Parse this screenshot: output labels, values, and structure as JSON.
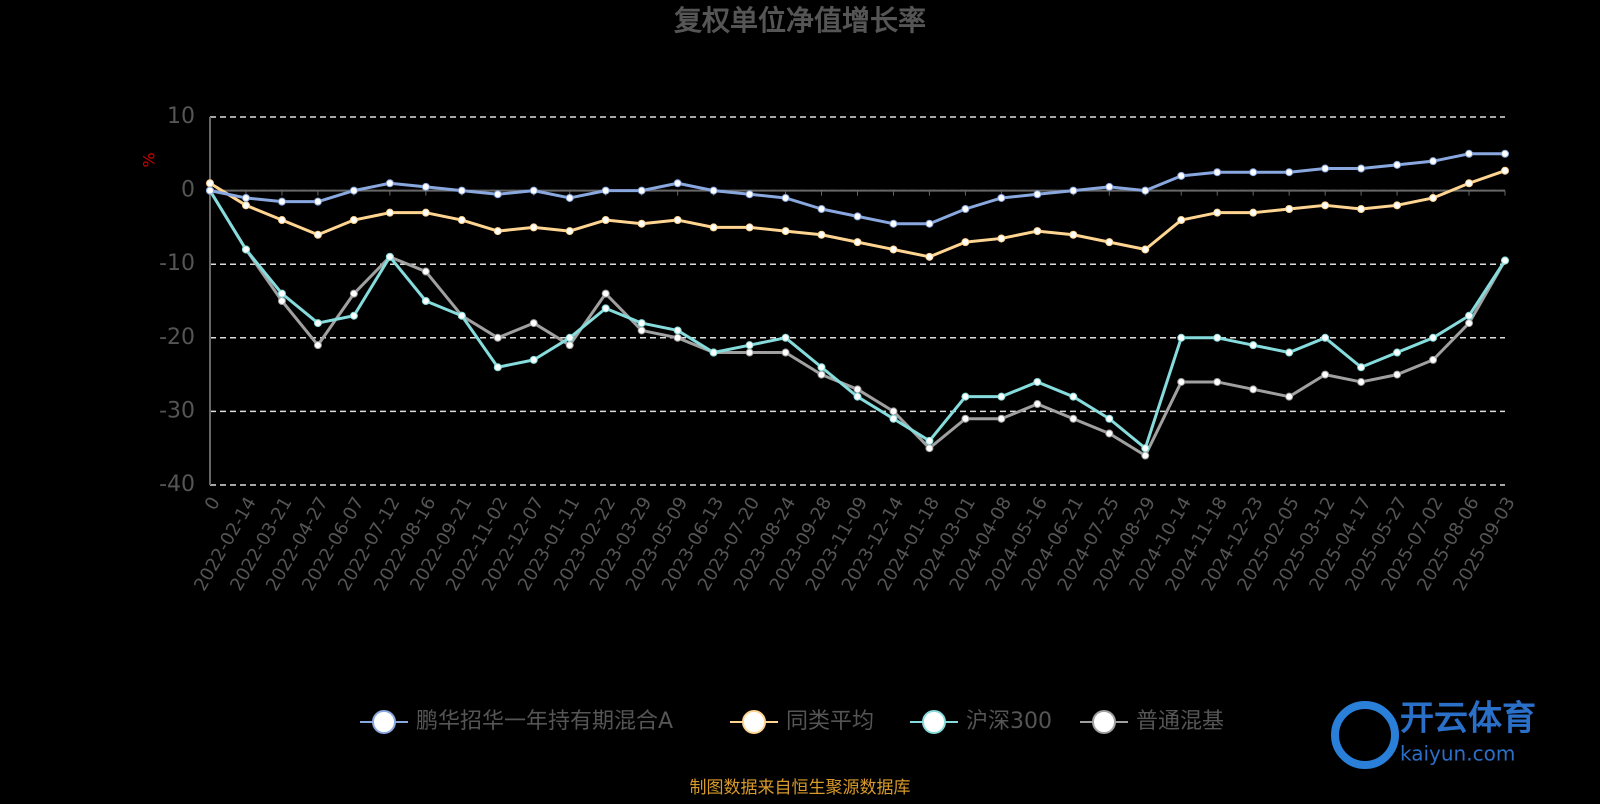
{
  "chart_data": {
    "type": "line",
    "title": "复权单位净值增长率",
    "y_label": "%",
    "categories": [
      "0",
      "2022-02-14",
      "2022-03-21",
      "2022-04-27",
      "2022-06-07",
      "2022-07-12",
      "2022-08-16",
      "2022-09-21",
      "2022-11-02",
      "2022-12-07",
      "2023-01-11",
      "2023-02-22",
      "2023-03-29",
      "2023-05-09",
      "2023-06-13",
      "2023-07-20",
      "2023-08-24",
      "2023-09-28",
      "2023-11-09",
      "2023-12-14",
      "2024-01-18",
      "2024-03-01",
      "2024-04-08",
      "2024-05-16",
      "2024-06-21",
      "2024-07-25",
      "2024-08-29",
      "2024-10-14",
      "2024-11-18",
      "2024-12-23",
      "2025-02-05",
      "2025-03-12",
      "2025-04-17",
      "2025-05-27",
      "2025-07-02",
      "2025-08-06",
      "2025-09-03"
    ],
    "series": [
      {
        "name": "鹏华招华一年持有期混合A",
        "color": "#8aa8e0",
        "values": [
          0,
          -1,
          -1.5,
          -1.5,
          0,
          1,
          0.5,
          0,
          -0.5,
          0,
          -1,
          0,
          0,
          1,
          0,
          -0.5,
          -1,
          -2.5,
          -3.5,
          -4.5,
          -4.5,
          -2.5,
          -1,
          -0.5,
          0,
          0.5,
          0,
          2,
          2.5,
          2.5,
          2.5,
          3,
          3,
          3.5,
          4,
          5,
          5
        ]
      },
      {
        "name": "同类平均",
        "color": "#ffd591",
        "values": [
          1,
          -2,
          -4,
          -6,
          -4,
          -3,
          -3,
          -4,
          -5.5,
          -5,
          -5.5,
          -4,
          -4.5,
          -4,
          -5,
          -5,
          -5.5,
          -6,
          -7,
          -8,
          -9,
          -7,
          -6.5,
          -5.5,
          -6,
          -7,
          -8,
          -4,
          -3,
          -3,
          -2.5,
          -2,
          -2.5,
          -2,
          -1,
          1,
          2.7
        ]
      },
      {
        "name": "沪深300",
        "color": "#86dcdc",
        "values": [
          0,
          -8,
          -14,
          -18,
          -17,
          -9,
          -15,
          -17,
          -24,
          -23,
          -20,
          -16,
          -18,
          -19,
          -22,
          -21,
          -20,
          -24,
          -28,
          -31,
          -34,
          -28,
          -28,
          -26,
          -28,
          -31,
          -35,
          -20,
          -20,
          -21,
          -22,
          -20,
          -24,
          -22,
          -20,
          -17,
          -9.5
        ]
      },
      {
        "name": "普通混基",
        "color": "#a0a0a0",
        "values": [
          0,
          -8,
          -15,
          -21,
          -14,
          -9,
          -11,
          -17,
          -20,
          -18,
          -21,
          -14,
          -19,
          -20,
          -22,
          -22,
          -22,
          -25,
          -27,
          -30,
          -35,
          -31,
          -31,
          -29,
          -31,
          -33,
          -36,
          -26,
          -26,
          -27,
          -28,
          -25,
          -26,
          -25,
          -23,
          -18,
          -9.5
        ]
      }
    ],
    "ylim": [
      -40,
      10
    ],
    "yticks": [
      -40,
      -30,
      -20,
      -10,
      0,
      10
    ],
    "grid": true,
    "source": "制图数据来自恒生聚源数据库",
    "watermark": "开云体育",
    "watermark_url": "kaiyun.com"
  }
}
